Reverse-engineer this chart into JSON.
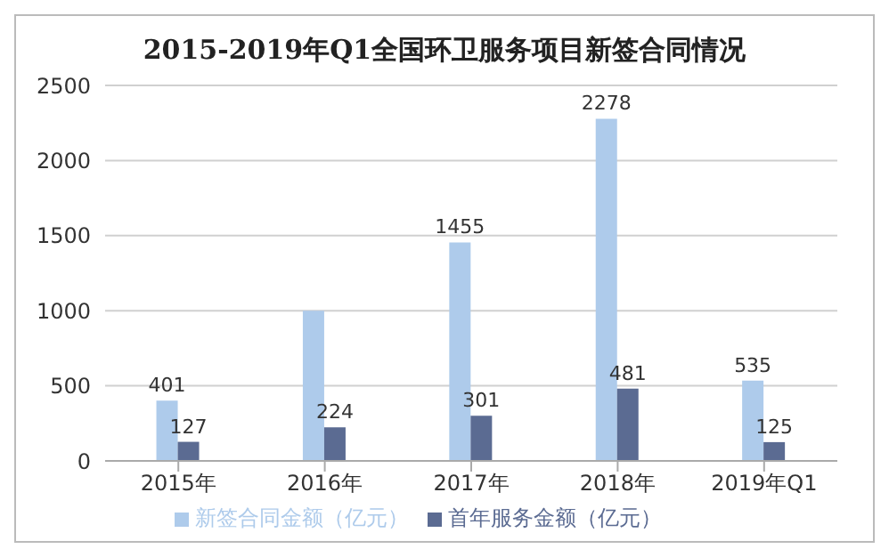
{
  "chart_data": {
    "type": "bar",
    "title": "2015-2019年Q1全国环卫服务项目新签合同情况",
    "categories": [
      "2015年",
      "2016年",
      "2017年",
      "2018年",
      "2019年Q1"
    ],
    "series": [
      {
        "name": "新签合同金额（亿元）",
        "color": "#aecbeb",
        "values": [
          401,
          1000,
          1455,
          2278,
          535
        ],
        "value_labels": [
          "401",
          null,
          "1455",
          "2278",
          "535"
        ]
      },
      {
        "name": "首年服务金额（亿元）",
        "color": "#5b6b92",
        "values": [
          127,
          224,
          301,
          481,
          125
        ],
        "value_labels": [
          "127",
          "224",
          "301",
          "481",
          "125"
        ]
      }
    ],
    "ylim": [
      0,
      2500
    ],
    "yticks": [
      0,
      500,
      1000,
      1500,
      2000,
      2500
    ],
    "grid": "y",
    "legend": "bottom"
  }
}
